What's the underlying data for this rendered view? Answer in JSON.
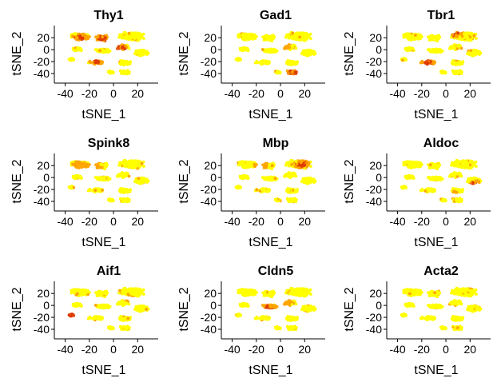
{
  "figure": {
    "colors": {
      "low": "#ffff00",
      "mid": "#ffa500",
      "high": "#e03c00",
      "axis": "#000000"
    }
  },
  "chart_data": [
    {
      "type": "scatter",
      "title": "Thy1",
      "xlabel": "tSNE_1",
      "ylabel": "tSNE_2",
      "xlim": [
        -45,
        37
      ],
      "ylim": [
        -48,
        35
      ],
      "xticks": [
        "-40",
        "-20",
        "0",
        "20"
      ],
      "yticks": [
        "20",
        "0",
        "-20",
        "-40"
      ],
      "grid": false,
      "legend": "none",
      "expression_clusters": [
        {
          "x": -27,
          "y": 20,
          "level": "high"
        },
        {
          "x": -10,
          "y": 18,
          "level": "high"
        },
        {
          "x": -14,
          "y": -20,
          "level": "high"
        },
        {
          "x": 5,
          "y": 3,
          "level": "high"
        },
        {
          "x": 15,
          "y": 22,
          "level": "low"
        }
      ]
    },
    {
      "type": "scatter",
      "title": "Gad1",
      "xlabel": "tSNE_1",
      "ylabel": "tSNE_2",
      "xlim": [
        -45,
        37
      ],
      "ylim": [
        -48,
        35
      ],
      "xticks": [
        "-40",
        "-20",
        "0",
        "20"
      ],
      "yticks": [
        "20",
        "0",
        "-20",
        "-40"
      ],
      "grid": false,
      "legend": "none",
      "expression_clusters": [
        {
          "x": 10,
          "y": -38,
          "level": "high"
        },
        {
          "x": 2,
          "y": 5,
          "level": "mid"
        },
        {
          "x": -20,
          "y": 20,
          "level": "low"
        }
      ]
    },
    {
      "type": "scatter",
      "title": "Tbr1",
      "xlabel": "tSNE_1",
      "ylabel": "tSNE_2",
      "xlim": [
        -45,
        37
      ],
      "ylim": [
        -48,
        35
      ],
      "xticks": [
        "-40",
        "-20",
        "0",
        "20"
      ],
      "yticks": [
        "20",
        "0",
        "-20",
        "-40"
      ],
      "grid": false,
      "legend": "none",
      "expression_clusters": [
        {
          "x": -15,
          "y": -22,
          "level": "high"
        },
        {
          "x": 8,
          "y": 28,
          "level": "high"
        },
        {
          "x": 15,
          "y": 0,
          "level": "mid"
        }
      ]
    },
    {
      "type": "scatter",
      "title": "Spink8",
      "xlabel": "tSNE_1",
      "ylabel": "tSNE_2",
      "xlim": [
        -45,
        37
      ],
      "ylim": [
        -48,
        35
      ],
      "xticks": [
        "-40",
        "-20",
        "0",
        "20"
      ],
      "yticks": [
        "20",
        "0",
        "-20",
        "-40"
      ],
      "grid": false,
      "legend": "none",
      "expression_clusters": [
        {
          "x": -28,
          "y": 20,
          "level": "mid"
        },
        {
          "x": -15,
          "y": 20,
          "level": "mid"
        },
        {
          "x": 15,
          "y": 22,
          "level": "low"
        }
      ]
    },
    {
      "type": "scatter",
      "title": "Mbp",
      "xlabel": "tSNE_1",
      "ylabel": "tSNE_2",
      "xlim": [
        -45,
        37
      ],
      "ylim": [
        -48,
        35
      ],
      "xticks": [
        "-40",
        "-20",
        "0",
        "20"
      ],
      "yticks": [
        "20",
        "0",
        "-20",
        "-40"
      ],
      "grid": false,
      "legend": "none",
      "expression_clusters": [
        {
          "x": 18,
          "y": 22,
          "level": "high"
        },
        {
          "x": -15,
          "y": 20,
          "level": "mid"
        }
      ]
    },
    {
      "type": "scatter",
      "title": "Aldoc",
      "xlabel": "tSNE_1",
      "ylabel": "tSNE_2",
      "xlim": [
        -45,
        37
      ],
      "ylim": [
        -48,
        35
      ],
      "xticks": [
        "-40",
        "-20",
        "0",
        "20"
      ],
      "yticks": [
        "20",
        "0",
        "-20",
        "-40"
      ],
      "grid": false,
      "legend": "none",
      "expression_clusters": [
        {
          "x": 25,
          "y": -12,
          "level": "high"
        },
        {
          "x": 5,
          "y": -30,
          "level": "high"
        },
        {
          "x": -20,
          "y": 20,
          "level": "low"
        }
      ]
    },
    {
      "type": "scatter",
      "title": "Aif1",
      "xlabel": "tSNE_1",
      "ylabel": "tSNE_2",
      "xlim": [
        -45,
        37
      ],
      "ylim": [
        -48,
        35
      ],
      "xticks": [
        "-40",
        "-20",
        "0",
        "20"
      ],
      "yticks": [
        "20",
        "0",
        "-20",
        "-40"
      ],
      "grid": false,
      "legend": "none",
      "expression_clusters": [
        {
          "x": -36,
          "y": -16,
          "level": "high"
        },
        {
          "x": 12,
          "y": 12,
          "level": "mid"
        }
      ]
    },
    {
      "type": "scatter",
      "title": "Cldn5",
      "xlabel": "tSNE_1",
      "ylabel": "tSNE_2",
      "xlim": [
        -45,
        37
      ],
      "ylim": [
        -48,
        35
      ],
      "xticks": [
        "-40",
        "-20",
        "0",
        "20"
      ],
      "yticks": [
        "20",
        "0",
        "-20",
        "-40"
      ],
      "grid": false,
      "legend": "none",
      "expression_clusters": [
        {
          "x": -10,
          "y": -4,
          "level": "high"
        },
        {
          "x": 5,
          "y": 5,
          "level": "mid"
        },
        {
          "x": 15,
          "y": 22,
          "level": "low"
        }
      ]
    },
    {
      "type": "scatter",
      "title": "Acta2",
      "xlabel": "tSNE_1",
      "ylabel": "tSNE_2",
      "xlim": [
        -45,
        37
      ],
      "ylim": [
        -48,
        35
      ],
      "xticks": [
        "-40",
        "-20",
        "0",
        "20"
      ],
      "yticks": [
        "20",
        "0",
        "-20",
        "-40"
      ],
      "grid": false,
      "legend": "none",
      "expression_clusters": [
        {
          "x": 6,
          "y": -5,
          "level": "high"
        },
        {
          "x": 14,
          "y": 20,
          "level": "low"
        }
      ]
    }
  ]
}
